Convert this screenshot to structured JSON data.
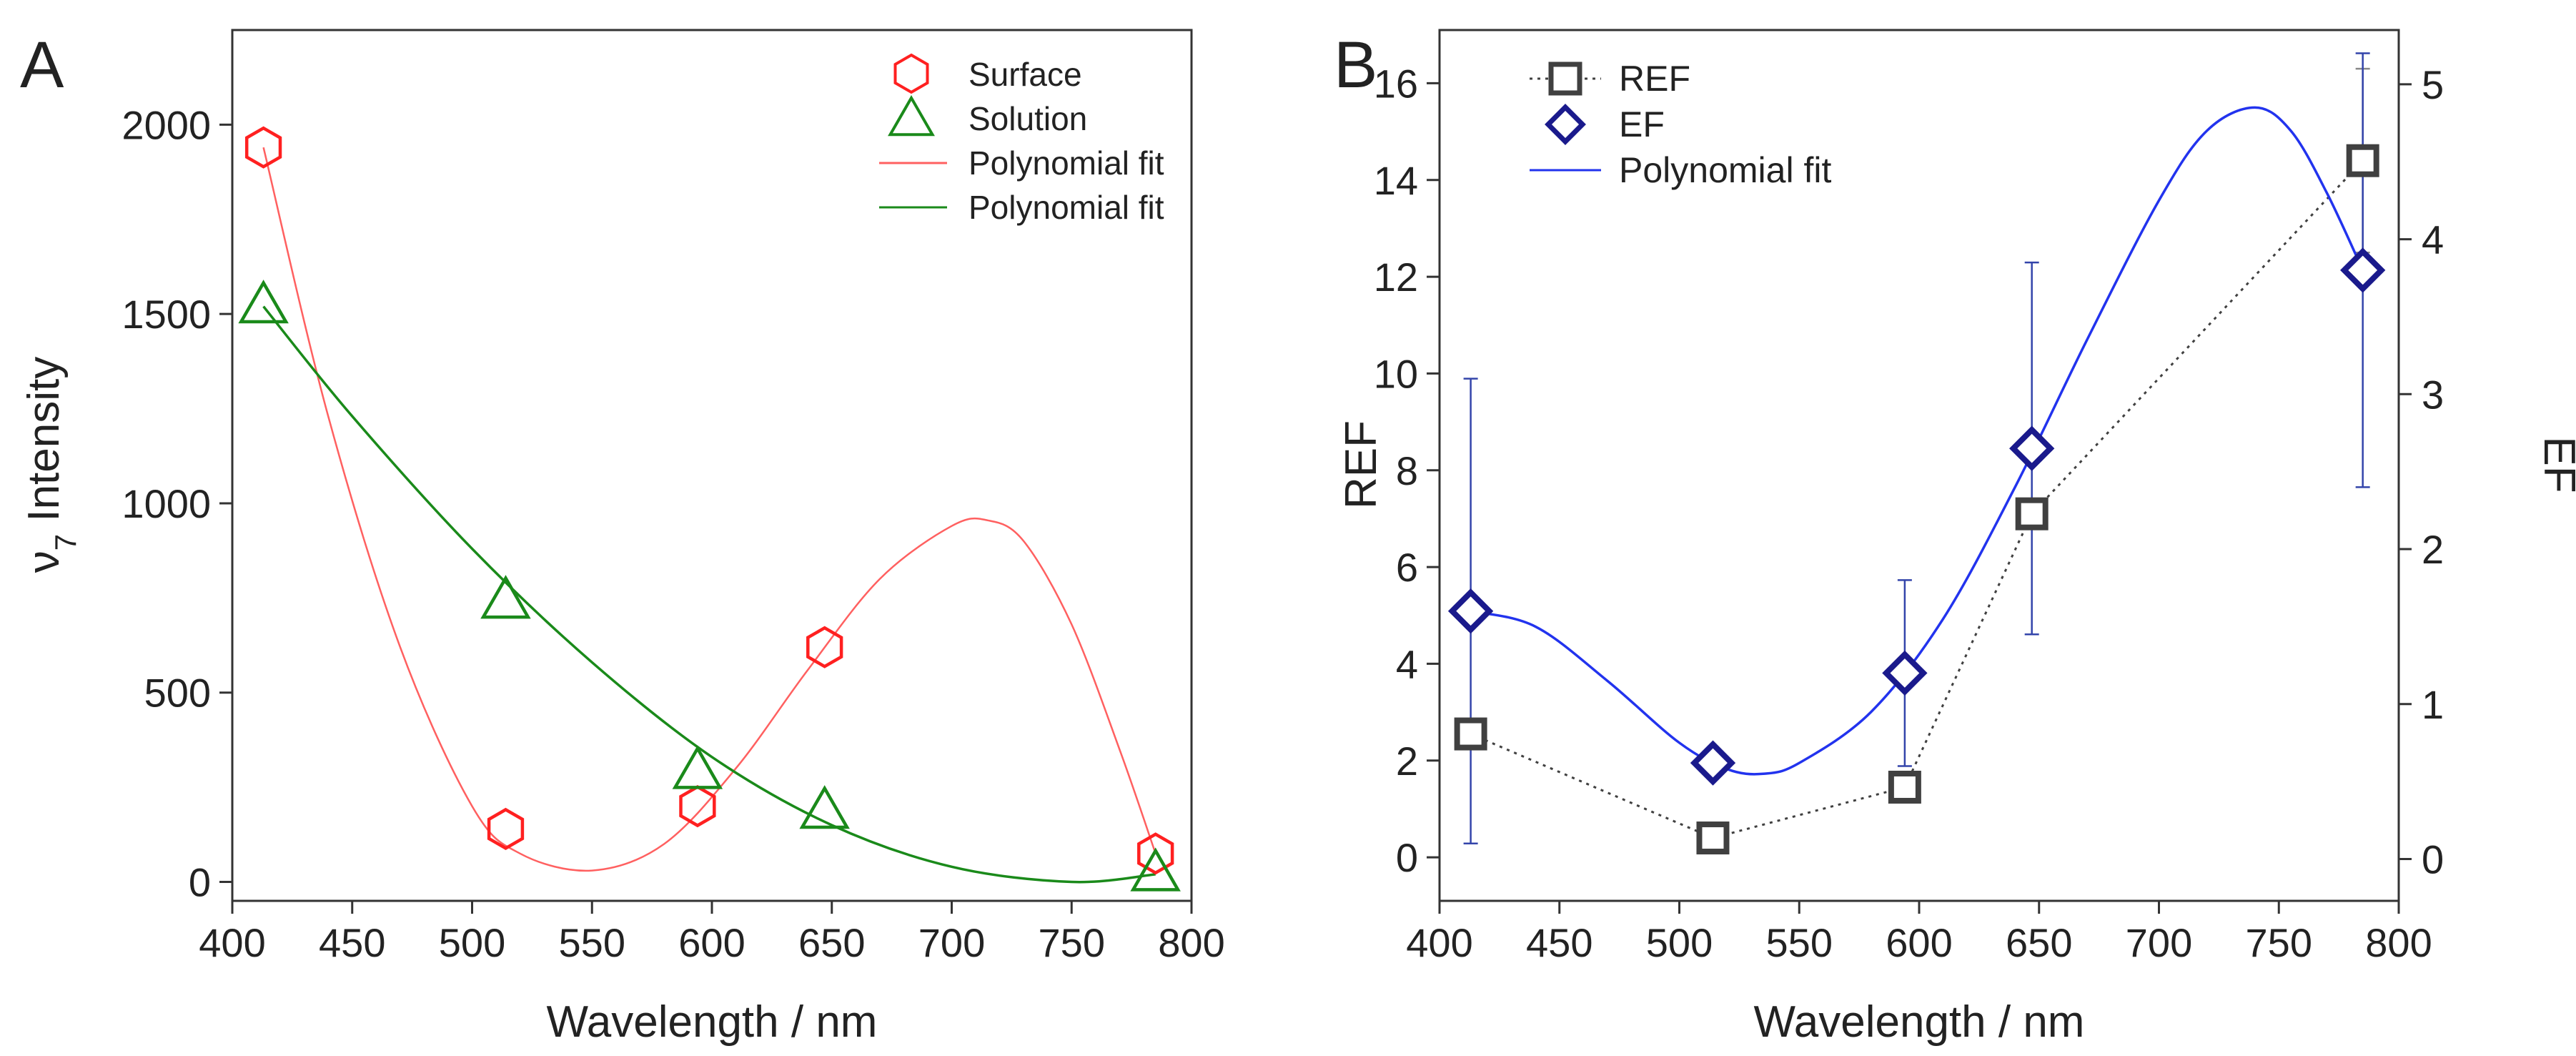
{
  "chart_data": [
    {
      "panel_label": "A",
      "type": "scatter",
      "xlabel": "Wavelength / nm",
      "ylabel_main": "ν",
      "ylabel_sub": "7",
      "ylabel_rest": " Intensity",
      "xlim": [
        400,
        800
      ],
      "ylim": [
        -50,
        2250
      ],
      "xticks": [
        400,
        450,
        500,
        550,
        600,
        650,
        700,
        750,
        800
      ],
      "yticks": [
        0,
        500,
        1000,
        1500,
        2000
      ],
      "series": [
        {
          "name": "Surface",
          "marker": "hexagon",
          "color": "#ff2020",
          "x": [
            413,
            514,
            594,
            647,
            785
          ],
          "y": [
            1940,
            140,
            200,
            620,
            75
          ]
        },
        {
          "name": "Solution",
          "marker": "triangle",
          "color": "#1a8a1a",
          "x": [
            413,
            514,
            594,
            647,
            785
          ],
          "y": [
            1520,
            740,
            290,
            185,
            20
          ]
        }
      ],
      "fits": [
        {
          "name": "Polynomial fit",
          "color": "#ff6060",
          "x": [
            413,
            440,
            470,
            500,
            520,
            550,
            580,
            610,
            640,
            670,
            700,
            715,
            730,
            750,
            770,
            785
          ],
          "y": [
            1940,
            1230,
            620,
            200,
            75,
            30,
            100,
            300,
            560,
            800,
            940,
            955,
            900,
            680,
            350,
            75
          ]
        },
        {
          "name": "Polynomial fit",
          "color": "#1a8a1a",
          "x": [
            413,
            450,
            500,
            550,
            600,
            650,
            700,
            750,
            785
          ],
          "y": [
            1520,
            1230,
            880,
            580,
            330,
            150,
            40,
            0,
            20
          ]
        }
      ]
    },
    {
      "panel_label": "B",
      "type": "scatter",
      "xlabel": "Wavelength / nm",
      "ylabel": "REF",
      "ylabel_right": "EF",
      "xlim": [
        400,
        800
      ],
      "ylim": [
        -0.9,
        17.1
      ],
      "ylim_right": [
        -0.27,
        5.35
      ],
      "xticks": [
        400,
        450,
        500,
        550,
        600,
        650,
        700,
        750,
        800
      ],
      "yticks": [
        0,
        2,
        4,
        6,
        8,
        10,
        12,
        14,
        16
      ],
      "yticks_right": [
        0,
        1,
        2,
        3,
        4,
        5
      ],
      "series": [
        {
          "name": "REF",
          "marker": "square",
          "color": "#404040",
          "line": "dotted",
          "x": [
            413,
            514,
            594,
            647,
            785
          ],
          "y": [
            2.55,
            0.4,
            1.45,
            7.1,
            14.4
          ],
          "err": [
            0,
            0,
            0,
            0,
            1.9
          ]
        },
        {
          "name": "EF",
          "marker": "diamond",
          "color": "#1a1a8c",
          "axis": "right",
          "x": [
            413,
            514,
            594,
            647,
            785
          ],
          "y": [
            1.6,
            0.62,
            1.2,
            2.65,
            3.8
          ],
          "err": [
            1.5,
            0,
            0.6,
            1.2,
            1.4
          ]
        }
      ],
      "fits": [
        {
          "name": "Polynomial fit",
          "color": "#2233ee",
          "axis": "right",
          "x": [
            413,
            440,
            470,
            500,
            520,
            535,
            550,
            580,
            610,
            640,
            670,
            700,
            720,
            740,
            755,
            770,
            785
          ],
          "y": [
            1.6,
            1.5,
            1.15,
            0.75,
            0.58,
            0.55,
            0.62,
            0.95,
            1.55,
            2.4,
            3.35,
            4.25,
            4.7,
            4.85,
            4.7,
            4.3,
            3.8
          ]
        }
      ]
    }
  ]
}
